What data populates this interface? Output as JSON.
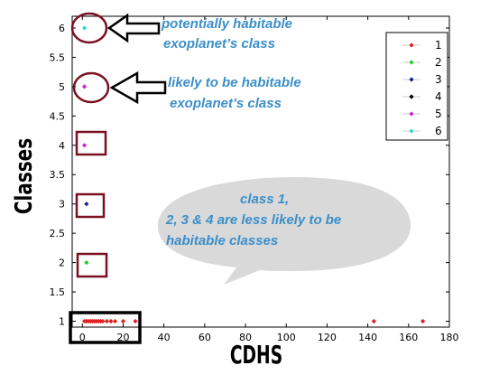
{
  "chart_data": {
    "type": "scatter",
    "xlabel": "CDHS",
    "ylabel": "Classes",
    "xlim": [
      -5,
      180
    ],
    "ylim": [
      0.9,
      6.2
    ],
    "xticks": [
      "0",
      "20",
      "40",
      "60",
      "80",
      "100",
      "120",
      "140",
      "160",
      "180"
    ],
    "yticks": [
      "1",
      "1.5",
      "2",
      "2.5",
      "3",
      "3.5",
      "4",
      "4.5",
      "5",
      "5.5",
      "6"
    ],
    "grid": false,
    "legend_position": "top-right",
    "series": [
      {
        "name": "1",
        "color": "#e02020",
        "points": [
          [
            1,
            1
          ],
          [
            2,
            1
          ],
          [
            3,
            1
          ],
          [
            4,
            1
          ],
          [
            5,
            1
          ],
          [
            6,
            1
          ],
          [
            7,
            1
          ],
          [
            8,
            1
          ],
          [
            9,
            1
          ],
          [
            10,
            1
          ],
          [
            12,
            1
          ],
          [
            14,
            1
          ],
          [
            16,
            1
          ],
          [
            20,
            1
          ],
          [
            26,
            1
          ],
          [
            143,
            1
          ],
          [
            167,
            1
          ]
        ]
      },
      {
        "name": "2",
        "color": "#22cc22",
        "points": [
          [
            2,
            2
          ]
        ]
      },
      {
        "name": "3",
        "color": "#1a1aa0",
        "points": [
          [
            2,
            3
          ]
        ]
      },
      {
        "name": "4",
        "color": "#000000",
        "points": []
      },
      {
        "name": "5",
        "color": "#cc22cc",
        "points": [
          [
            1,
            4
          ],
          [
            1,
            5
          ]
        ]
      },
      {
        "name": "6",
        "color": "#33d8d8",
        "points": [
          [
            1,
            6
          ]
        ]
      }
    ],
    "annotations": {
      "arrow_6_line1": "potentially habitable",
      "arrow_6_line2": "exoplanet’s class",
      "arrow_5_line1": "likely to be habitable",
      "arrow_5_line2": "exoplanet’s class",
      "bubble_line1": "class 1,",
      "bubble_line2": "2, 3 & 4 are less likely to be",
      "bubble_line3": "habitable classes"
    }
  }
}
